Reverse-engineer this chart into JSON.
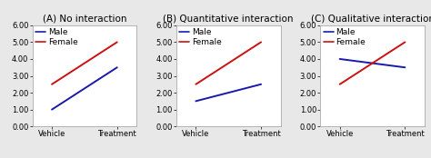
{
  "panels": [
    {
      "title": "(A) No interaction",
      "male": [
        1.0,
        3.5
      ],
      "female": [
        2.5,
        5.0
      ]
    },
    {
      "title": "(B) Quantitative interaction",
      "male": [
        1.5,
        2.5
      ],
      "female": [
        2.5,
        5.0
      ]
    },
    {
      "title": "(C) Qualitative interaction",
      "male": [
        4.0,
        3.5
      ],
      "female": [
        2.5,
        5.0
      ]
    }
  ],
  "x_labels": [
    "Vehicle",
    "Treatment"
  ],
  "x_ticks": [
    0,
    1
  ],
  "ylim": [
    0.0,
    6.0
  ],
  "yticks": [
    0.0,
    1.0,
    2.0,
    3.0,
    4.0,
    5.0,
    6.0
  ],
  "male_color": "#1a1aaa",
  "female_color": "#cc1111",
  "legend_labels": [
    "Male",
    "Female"
  ],
  "title_fontsize": 7.5,
  "tick_fontsize": 6.0,
  "legend_fontsize": 6.5,
  "line_width": 1.4,
  "outer_bg": "#e8e8e8",
  "plot_bg": "#ffffff",
  "border_color": "#aaaaaa"
}
